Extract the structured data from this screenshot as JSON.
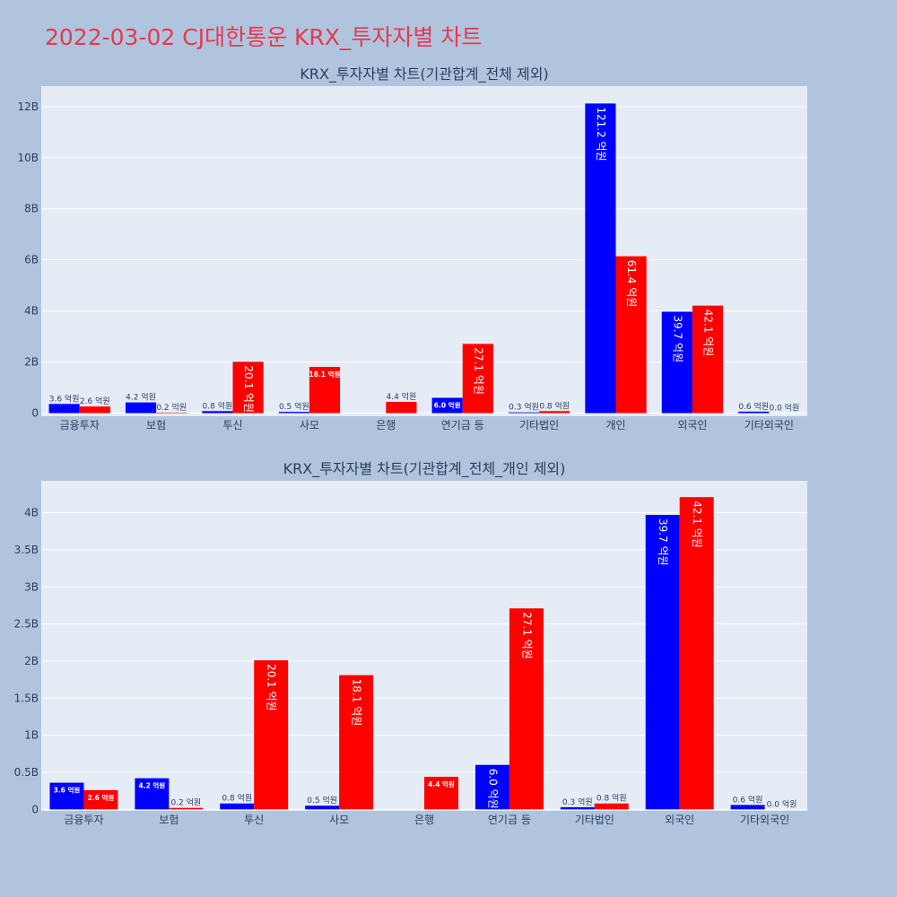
{
  "header": {
    "title": "2022-03-02 CJ대한통운 KRX_투자자별 차트"
  },
  "colors": {
    "buy": "#0000ff",
    "sell": "#ff0000",
    "page_bg": "#b0c4de",
    "plot_bg": "#e5ecf6"
  },
  "chart_data": [
    {
      "type": "bar",
      "title": "KRX_투자자별 차트(기관합계_전체 제외)",
      "categories": [
        "금융투자",
        "보험",
        "투신",
        "사모",
        "은행",
        "연기금 등",
        "기타법인",
        "개인",
        "외국인",
        "기타외국인"
      ],
      "series": [
        {
          "color": "#0000ff",
          "values": [
            0.36,
            0.42,
            0.08,
            0.05,
            0.0,
            0.6,
            0.03,
            12.12,
            3.97,
            0.06
          ]
        },
        {
          "color": "#ff0000",
          "values": [
            0.26,
            0.02,
            2.01,
            1.81,
            0.44,
            2.71,
            0.08,
            6.14,
            4.21,
            0.0
          ]
        }
      ],
      "labels": [
        [
          "3.6 억원",
          "4.2 억원",
          "0.8 억원",
          "0.5 억원",
          "",
          "6.0 억원",
          "0.3 억원",
          "121.2 억원",
          "39.7 억원",
          "0.6 억원"
        ],
        [
          "2.6 억원",
          "0.2 억원",
          "20.1 억원",
          "18.1 억원",
          "4.4 억원",
          "27.1 억원",
          "0.8 억원",
          "61.4 억원",
          "42.1 억원",
          "0.0 억원"
        ]
      ],
      "yticks": [
        {
          "v": 0,
          "label": "0"
        },
        {
          "v": 2,
          "label": "2B"
        },
        {
          "v": 4,
          "label": "4B"
        },
        {
          "v": 6,
          "label": "6B"
        },
        {
          "v": 8,
          "label": "8B"
        },
        {
          "v": 10,
          "label": "10B"
        },
        {
          "v": 12,
          "label": "12B"
        }
      ],
      "ylim": [
        -0.12,
        12.8
      ],
      "grid": true
    },
    {
      "type": "bar",
      "title": "KRX_투자자별 차트(기관합계_전체_개인 제외)",
      "categories": [
        "금융투자",
        "보험",
        "투신",
        "사모",
        "은행",
        "연기금 등",
        "기타법인",
        "외국인",
        "기타외국인"
      ],
      "series": [
        {
          "color": "#0000ff",
          "values": [
            0.36,
            0.42,
            0.08,
            0.05,
            0.0,
            0.6,
            0.03,
            3.97,
            0.06
          ]
        },
        {
          "color": "#ff0000",
          "values": [
            0.26,
            0.02,
            2.01,
            1.81,
            0.44,
            2.71,
            0.08,
            4.21,
            0.0
          ]
        }
      ],
      "labels": [
        [
          "3.6 억원",
          "4.2 억원",
          "0.8 억원",
          "0.5 억원",
          "",
          "6.0 억원",
          "0.3 억원",
          "39.7 억원",
          "0.6 억원"
        ],
        [
          "2.6 억원",
          "0.2 억원",
          "20.1 억원",
          "18.1 억원",
          "4.4 억원",
          "27.1 억원",
          "0.8 억원",
          "42.1 억원",
          "0.0 억원"
        ]
      ],
      "yticks": [
        {
          "v": 0,
          "label": "0"
        },
        {
          "v": 0.5,
          "label": "0.5B"
        },
        {
          "v": 1,
          "label": "1B"
        },
        {
          "v": 1.5,
          "label": "1.5B"
        },
        {
          "v": 2,
          "label": "2B"
        },
        {
          "v": 2.5,
          "label": "2.5B"
        },
        {
          "v": 3,
          "label": "3B"
        },
        {
          "v": 3.5,
          "label": "3.5B"
        },
        {
          "v": 4,
          "label": "4B"
        }
      ],
      "ylim": [
        -0.02,
        4.43
      ],
      "grid": true
    }
  ]
}
